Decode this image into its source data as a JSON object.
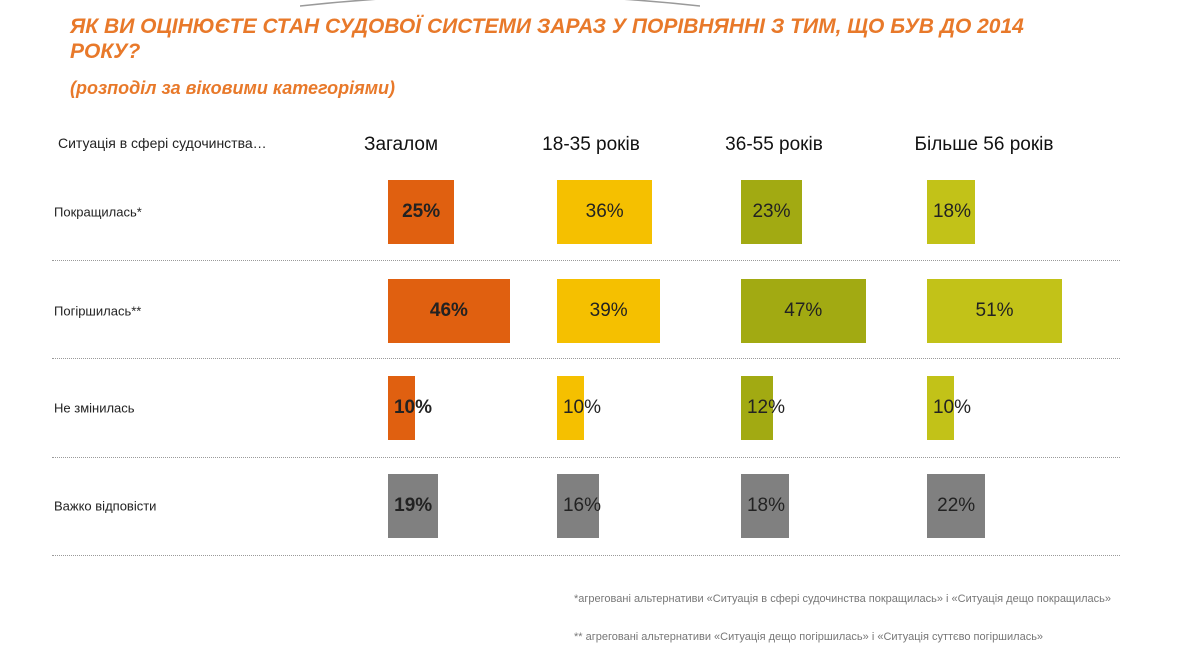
{
  "title": "ЯК ВИ ОЦІНЮЄТЕ СТАН СУДОВОЇ СИСТЕМИ ЗАРАЗ У ПОРІВНЯННІ З ТИМ, ЩО БУВ ДО 2014 РОКУ?",
  "subtitle": "(розподіл за віковими категоріями)",
  "row_header": "Ситуація в сфері судочинства…",
  "footnotes": [
    "*агреговані альтернативи «Ситуація в сфері судочинства покращилась» і «Ситуація дещо покращилась»",
    "** агреговані альтернативи «Ситуація дещо погіршилась» і «Ситуація суттєво погіршилась»"
  ],
  "chart_data": {
    "type": "bar",
    "categories": [
      "Покращилась*",
      "Погіршилась**",
      "Не змінилась",
      "Важко відповісти"
    ],
    "series": [
      {
        "name": "Загалом",
        "values": [
          25,
          46,
          10,
          19
        ],
        "color": "#e06010"
      },
      {
        "name": "18-35 років",
        "values": [
          36,
          39,
          10,
          16
        ],
        "color": "#f5c000"
      },
      {
        "name": "36-55 років",
        "values": [
          23,
          47,
          12,
          18
        ],
        "color": "#a2aa12"
      },
      {
        "name": "Більше 56 років",
        "values": [
          18,
          51,
          10,
          22
        ],
        "color": "#c2c218"
      }
    ],
    "value_suffix": "%",
    "muted_category_color": "#808080"
  }
}
